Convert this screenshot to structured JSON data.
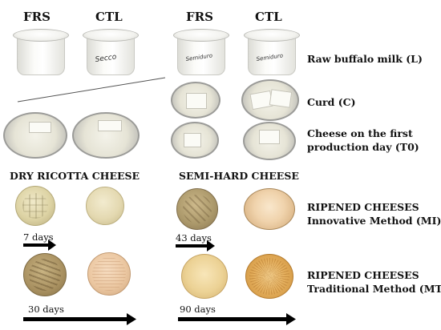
{
  "columns": {
    "frs_left": "FRS",
    "ctl_left": "CTL",
    "frs_right": "FRS",
    "ctl_right": "CTL"
  },
  "rows": {
    "raw_milk": "Raw buffalo milk (L)",
    "curd": "Curd (C)",
    "cheese_t0_line1": "Cheese on the first",
    "cheese_t0_line2": "production day (T0)"
  },
  "sections": {
    "dry_ricotta": "DRY RICOTTA CHEESE",
    "semi_hard": "SEMI-HARD CHEESE"
  },
  "ripened": {
    "mi_line1": "RIPENED CHEESES",
    "mi_line2": "Innovative Method (MI)",
    "mt_line1": "RIPENED CHEESES",
    "mt_line2": "Traditional Method (MT)"
  },
  "timelines": {
    "ricotta_mi": "7 days",
    "semi_mi": "43 days",
    "ricotta_mt": "30 days",
    "semi_mt": "90 days"
  },
  "cup_labels": {
    "ctl_left": "Secco",
    "frs_right": "Semiduro",
    "ctl_right": "Semiduro"
  },
  "colors": {
    "arrow": "#000000",
    "text": "#111111"
  }
}
